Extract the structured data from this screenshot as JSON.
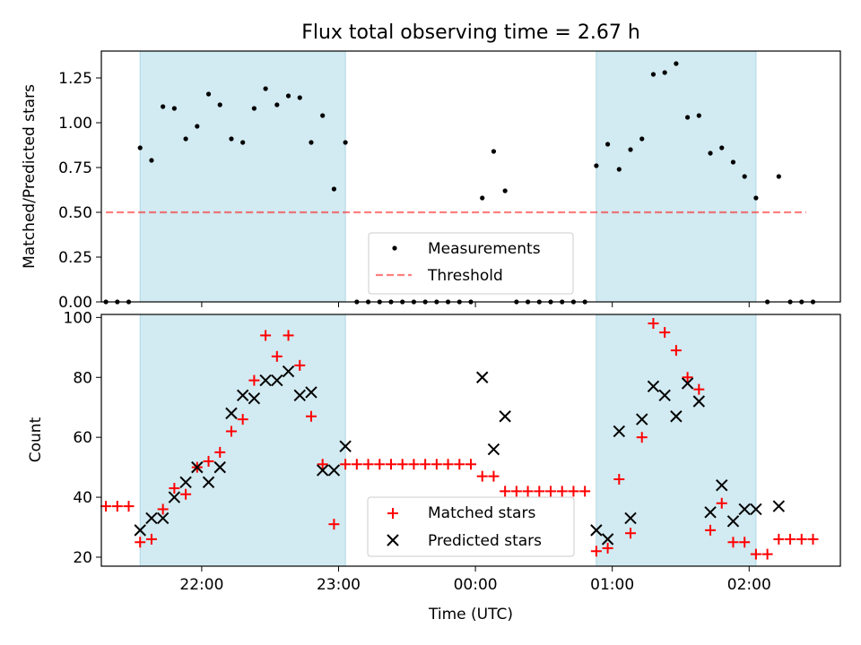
{
  "title": "Flux total observing time = 2.67 h",
  "colors": {
    "band": "#add8e6",
    "measurement": "#000000",
    "threshold": "#ff0000",
    "matched": "#ff0000",
    "predicted": "#000000"
  },
  "chart_data": [
    {
      "type": "scatter",
      "panel": "top",
      "ylabel": "Matched/Predicted stars",
      "xlim": [
        -164,
        160
      ],
      "ylim": [
        0,
        1.4
      ],
      "y_ticks": [
        0,
        0.25,
        0.5,
        0.75,
        1.0,
        1.25
      ],
      "y_tick_labels": [
        "0.00",
        "0.25",
        "0.50",
        "0.75",
        "1.00",
        "1.25"
      ],
      "x_ticks": [
        -120,
        -60,
        0,
        60,
        120
      ],
      "shaded_intervals": [
        [
          -147,
          -57
        ],
        [
          53,
          123
        ]
      ],
      "threshold": {
        "name": "Threshold",
        "y": 0.5,
        "x_range": [
          -162,
          145
        ]
      },
      "legend": {
        "position": "lower center",
        "entries": [
          "Measurements",
          "Threshold"
        ]
      },
      "series": [
        {
          "name": "Measurements",
          "marker": "dot",
          "x": [
            -162,
            -157,
            -152,
            -147,
            -142,
            -137,
            -132,
            -127,
            -122,
            -117,
            -112,
            -107,
            -102,
            -97,
            -92,
            -87,
            -82,
            -77,
            -72,
            -67,
            -62,
            -57,
            -52,
            -47,
            -42,
            -37,
            -32,
            -27,
            -22,
            -17,
            -12,
            -7,
            -2,
            3,
            8,
            13,
            18,
            23,
            28,
            33,
            38,
            43,
            48,
            53,
            58,
            63,
            68,
            73,
            78,
            83,
            88,
            93,
            98,
            103,
            108,
            113,
            118,
            123,
            128,
            133,
            138,
            143,
            148
          ],
          "y": [
            0,
            0,
            0,
            0.86,
            0.79,
            1.09,
            1.08,
            0.91,
            0.98,
            1.16,
            1.1,
            0.91,
            0.89,
            1.08,
            1.19,
            1.1,
            1.15,
            1.14,
            0.89,
            1.04,
            0.63,
            0.89,
            0,
            0,
            0,
            0,
            0,
            0,
            0,
            0,
            0,
            0,
            0,
            0.58,
            0.84,
            0.62,
            0,
            0,
            0,
            0,
            0,
            0,
            0,
            0.76,
            0.88,
            0.74,
            0.85,
            0.91,
            1.27,
            1.28,
            1.33,
            1.03,
            1.04,
            0.83,
            0.86,
            0.78,
            0.7,
            0.58,
            0,
            0.7,
            0,
            0,
            0
          ]
        }
      ]
    },
    {
      "type": "scatter",
      "panel": "bottom",
      "xlabel": "Time (UTC)",
      "ylabel": "Count",
      "xlim": [
        -164,
        160
      ],
      "ylim": [
        17,
        101
      ],
      "y_ticks": [
        20,
        40,
        60,
        80,
        100
      ],
      "y_tick_labels": [
        "20",
        "40",
        "60",
        "80",
        "100"
      ],
      "x_ticks": [
        -120,
        -60,
        0,
        60,
        120
      ],
      "x_tick_labels": [
        "22:00",
        "23:00",
        "00:00",
        "01:00",
        "02:00"
      ],
      "shaded_intervals": [
        [
          -147,
          -57
        ],
        [
          53,
          123
        ]
      ],
      "legend": {
        "position": "lower center",
        "entries": [
          "Matched stars",
          "Predicted stars"
        ]
      },
      "series": [
        {
          "name": "Matched stars",
          "marker": "plus",
          "x": [
            -162,
            -157,
            -152,
            -147,
            -142,
            -137,
            -132,
            -127,
            -122,
            -117,
            -112,
            -107,
            -102,
            -97,
            -92,
            -87,
            -82,
            -77,
            -72,
            -67,
            -62,
            -57,
            -52,
            -47,
            -42,
            -37,
            -32,
            -27,
            -22,
            -17,
            -12,
            -7,
            -2,
            3,
            8,
            13,
            18,
            23,
            28,
            33,
            38,
            43,
            48,
            53,
            58,
            63,
            68,
            73,
            78,
            83,
            88,
            93,
            98,
            103,
            108,
            113,
            118,
            123,
            128,
            133,
            138,
            143,
            148
          ],
          "y": [
            37,
            37,
            37,
            25,
            26,
            36,
            43,
            41,
            50,
            52,
            55,
            62,
            66,
            79,
            94,
            87,
            94,
            84,
            67,
            51,
            31,
            51,
            51,
            51,
            51,
            51,
            51,
            51,
            51,
            51,
            51,
            51,
            51,
            47,
            47,
            42,
            42,
            42,
            42,
            42,
            42,
            42,
            42,
            22,
            23,
            46,
            28,
            60,
            98,
            95,
            89,
            80,
            76,
            29,
            38,
            25,
            25,
            21,
            21,
            26,
            26,
            26,
            26
          ]
        },
        {
          "name": "Predicted stars",
          "marker": "x",
          "x": [
            -147,
            -142,
            -137,
            -132,
            -127,
            -122,
            -117,
            -112,
            -107,
            -102,
            -97,
            -92,
            -87,
            -82,
            -77,
            -72,
            -67,
            -62,
            -57,
            3,
            8,
            13,
            53,
            58,
            63,
            68,
            73,
            78,
            83,
            88,
            93,
            98,
            103,
            108,
            113,
            118,
            123,
            133
          ],
          "y": [
            29,
            33,
            33,
            40,
            45,
            50,
            45,
            50,
            68,
            74,
            73,
            79,
            79,
            82,
            74,
            75,
            49,
            49,
            57,
            80,
            56,
            67,
            29,
            26,
            62,
            33,
            66,
            77,
            74,
            67,
            78,
            72,
            35,
            44,
            32,
            36,
            36,
            37
          ]
        }
      ]
    }
  ]
}
